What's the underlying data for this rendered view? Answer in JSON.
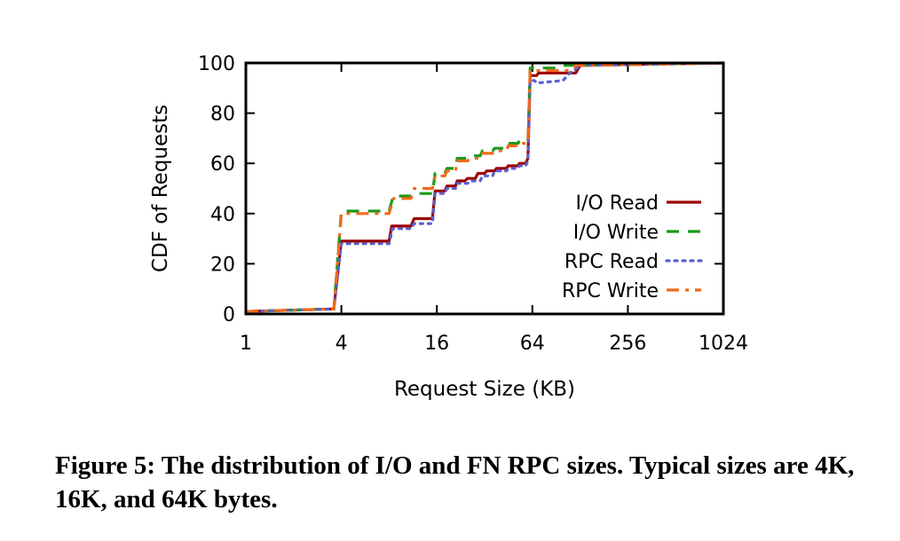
{
  "chart_data": {
    "type": "line",
    "title": "",
    "xlabel": "Request Size (KB)",
    "ylabel": "CDF of Requests",
    "x_scale": "log2",
    "xlim": [
      1,
      1024
    ],
    "ylim": [
      0,
      100
    ],
    "x_ticks": [
      1,
      4,
      16,
      64,
      256,
      1024
    ],
    "x_tick_labels": [
      "1",
      "4",
      "16",
      "64",
      "256",
      "1024"
    ],
    "y_ticks": [
      0,
      20,
      40,
      60,
      80,
      100
    ],
    "y_tick_labels": [
      "0",
      "20",
      "40",
      "60",
      "80",
      "100"
    ],
    "legend_position": "right",
    "series": [
      {
        "name": "I/O Read",
        "color": "#9b0000",
        "style": "solid",
        "points": [
          [
            1,
            1
          ],
          [
            3.6,
            2
          ],
          [
            3.6,
            3
          ],
          [
            4,
            29
          ],
          [
            8,
            29
          ],
          [
            8.3,
            35
          ],
          [
            11,
            35
          ],
          [
            11.5,
            38
          ],
          [
            15,
            38
          ],
          [
            15.6,
            49
          ],
          [
            18,
            49
          ],
          [
            18.5,
            51
          ],
          [
            21,
            51
          ],
          [
            21.5,
            53
          ],
          [
            24,
            53
          ],
          [
            25,
            54
          ],
          [
            28,
            54
          ],
          [
            29,
            56
          ],
          [
            32,
            56
          ],
          [
            33,
            57
          ],
          [
            37,
            57
          ],
          [
            38,
            58
          ],
          [
            44,
            58
          ],
          [
            45,
            59
          ],
          [
            52,
            59
          ],
          [
            53,
            60
          ],
          [
            58,
            60
          ],
          [
            60,
            62
          ],
          [
            62,
            95
          ],
          [
            68,
            95
          ],
          [
            70,
            96
          ],
          [
            120,
            96
          ],
          [
            128,
            99
          ],
          [
            1024,
            100
          ]
        ]
      },
      {
        "name": "I/O Write",
        "color": "#1a9a1a",
        "style": "dashed",
        "points": [
          [
            1,
            1
          ],
          [
            3.6,
            2
          ],
          [
            3.6,
            3
          ],
          [
            4,
            41
          ],
          [
            8,
            41
          ],
          [
            8.5,
            47
          ],
          [
            11,
            47
          ],
          [
            11.5,
            48
          ],
          [
            15,
            48
          ],
          [
            15.6,
            56
          ],
          [
            18,
            56
          ],
          [
            18.5,
            58
          ],
          [
            21,
            58
          ],
          [
            21.5,
            62
          ],
          [
            25,
            62
          ],
          [
            26,
            63
          ],
          [
            30,
            63
          ],
          [
            31,
            65
          ],
          [
            36,
            65
          ],
          [
            37,
            66
          ],
          [
            44,
            66
          ],
          [
            45,
            68
          ],
          [
            52,
            68
          ],
          [
            53,
            69
          ],
          [
            60,
            69
          ],
          [
            62,
            98
          ],
          [
            90,
            98
          ],
          [
            100,
            99
          ],
          [
            1024,
            100
          ]
        ]
      },
      {
        "name": "RPC Read",
        "color": "#5b60d0",
        "style": "dotted",
        "points": [
          [
            1,
            1
          ],
          [
            3.6,
            2
          ],
          [
            3.6,
            3
          ],
          [
            4,
            28
          ],
          [
            8,
            28
          ],
          [
            8.4,
            34
          ],
          [
            11,
            34
          ],
          [
            11.5,
            36
          ],
          [
            15,
            36
          ],
          [
            15.6,
            48
          ],
          [
            18,
            48
          ],
          [
            18.5,
            50
          ],
          [
            21,
            50
          ],
          [
            21.5,
            52
          ],
          [
            25,
            52
          ],
          [
            26,
            53
          ],
          [
            30,
            53
          ],
          [
            31,
            55
          ],
          [
            36,
            55
          ],
          [
            37,
            57
          ],
          [
            44,
            57
          ],
          [
            45,
            58
          ],
          [
            52,
            58
          ],
          [
            53,
            59
          ],
          [
            58,
            59
          ],
          [
            60,
            61
          ],
          [
            62,
            93
          ],
          [
            66,
            93
          ],
          [
            68,
            92
          ],
          [
            100,
            93
          ],
          [
            110,
            96
          ],
          [
            130,
            99
          ],
          [
            1024,
            100
          ]
        ]
      },
      {
        "name": "RPC Write",
        "color": "#f06a1a",
        "style": "dashdot",
        "points": [
          [
            1,
            1
          ],
          [
            3.6,
            2
          ],
          [
            3.6,
            3
          ],
          [
            4,
            40
          ],
          [
            8,
            40
          ],
          [
            8.5,
            46
          ],
          [
            11,
            46
          ],
          [
            11.5,
            50
          ],
          [
            15,
            50
          ],
          [
            15.6,
            55
          ],
          [
            18,
            55
          ],
          [
            18.5,
            57
          ],
          [
            21,
            57
          ],
          [
            21.5,
            61
          ],
          [
            25,
            61
          ],
          [
            26,
            62
          ],
          [
            30,
            62
          ],
          [
            31,
            64
          ],
          [
            36,
            64
          ],
          [
            37,
            65
          ],
          [
            44,
            65
          ],
          [
            45,
            67
          ],
          [
            52,
            67
          ],
          [
            53,
            68
          ],
          [
            60,
            68
          ],
          [
            62,
            97
          ],
          [
            110,
            97
          ],
          [
            120,
            99
          ],
          [
            1024,
            100
          ]
        ]
      }
    ]
  },
  "caption": {
    "text": "Figure 5: The distribution of I/O and FN RPC sizes. Typical sizes are 4K, 16K, and 64K bytes."
  }
}
